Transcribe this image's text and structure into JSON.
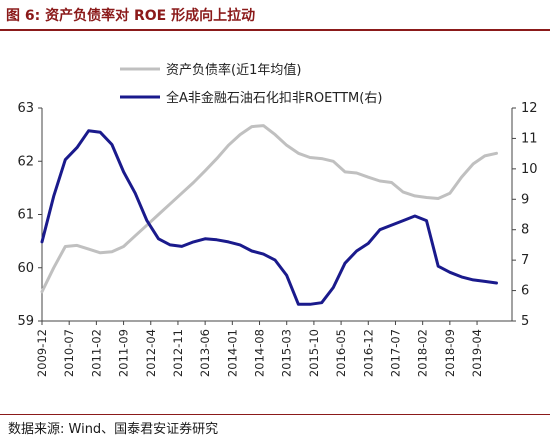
{
  "figure": {
    "title": "图 6:  资产负债率对 ROE 形成向上拉动",
    "source": "数据来源: Wind、国泰君安证券研究"
  },
  "colors": {
    "brand": "#8b1a1a",
    "series_gray": "#c0c0c0",
    "series_navy": "#1a1a8c"
  },
  "chart_data": {
    "type": "line",
    "title": "",
    "xlabel": "",
    "ylabel": "",
    "x_tick_labels": [
      "2009-12",
      "2010-07",
      "2011-02",
      "2011-09",
      "2012-04",
      "2012-11",
      "2013-06",
      "2014-01",
      "2014-08",
      "2015-03",
      "2015-10",
      "2016-05",
      "2016-12",
      "2017-07",
      "2018-02",
      "2018-09",
      "2019-04"
    ],
    "y_left": {
      "ticks": [
        "59",
        "60",
        "61",
        "62",
        "63"
      ],
      "min": 59,
      "max": 63
    },
    "y_right": {
      "ticks": [
        "5",
        "6",
        "7",
        "8",
        "9",
        "10",
        "11",
        "12"
      ],
      "min": 5,
      "max": 12
    },
    "legend_position": "top-center",
    "grid": false,
    "series": [
      {
        "name": "资产负债率(近1年均值)",
        "axis": "left",
        "color": "#c0c0c0",
        "x": [
          "2009-12",
          "2010-03",
          "2010-06",
          "2010-09",
          "2010-12",
          "2011-03",
          "2011-06",
          "2011-09",
          "2011-12",
          "2012-03",
          "2012-06",
          "2012-09",
          "2012-12",
          "2013-03",
          "2013-06",
          "2013-09",
          "2013-12",
          "2014-03",
          "2014-06",
          "2014-09",
          "2014-12",
          "2015-03",
          "2015-06",
          "2015-09",
          "2015-12",
          "2016-03",
          "2016-06",
          "2016-09",
          "2016-12",
          "2017-03",
          "2017-06",
          "2017-09",
          "2017-12",
          "2018-03",
          "2018-06",
          "2018-09",
          "2018-12",
          "2019-03",
          "2019-06",
          "2019-09"
        ],
        "values": [
          59.55,
          60.0,
          60.4,
          60.42,
          60.35,
          60.28,
          60.3,
          60.4,
          60.6,
          60.8,
          61.0,
          61.2,
          61.4,
          61.6,
          61.82,
          62.05,
          62.3,
          62.5,
          62.65,
          62.67,
          62.5,
          62.3,
          62.15,
          62.07,
          62.05,
          62.0,
          61.8,
          61.78,
          61.7,
          61.63,
          61.6,
          61.42,
          61.35,
          61.32,
          61.3,
          61.4,
          61.7,
          61.95,
          62.1,
          62.15
        ]
      },
      {
        "name": "全A非金融石油石化扣非ROETTM(右)",
        "axis": "right",
        "color": "#1a1a8c",
        "x": [
          "2009-12",
          "2010-03",
          "2010-06",
          "2010-09",
          "2010-12",
          "2011-03",
          "2011-06",
          "2011-09",
          "2011-12",
          "2012-03",
          "2012-06",
          "2012-09",
          "2012-12",
          "2013-03",
          "2013-06",
          "2013-09",
          "2013-12",
          "2014-03",
          "2014-06",
          "2014-09",
          "2014-12",
          "2015-03",
          "2015-06",
          "2015-09",
          "2015-12",
          "2016-03",
          "2016-06",
          "2016-09",
          "2016-12",
          "2017-03",
          "2017-06",
          "2017-09",
          "2017-12",
          "2018-03",
          "2018-06",
          "2018-09",
          "2018-12",
          "2019-03",
          "2019-06",
          "2019-09"
        ],
        "values": [
          7.6,
          9.1,
          10.3,
          10.7,
          11.25,
          11.2,
          10.8,
          9.9,
          9.2,
          8.3,
          7.7,
          7.5,
          7.45,
          7.6,
          7.7,
          7.67,
          7.6,
          7.5,
          7.3,
          7.2,
          7.0,
          6.5,
          5.55,
          5.55,
          5.6,
          6.1,
          6.9,
          7.3,
          7.55,
          8.0,
          8.15,
          8.3,
          8.45,
          8.3,
          6.8,
          6.6,
          6.45,
          6.35,
          6.3,
          6.25
        ]
      }
    ]
  }
}
